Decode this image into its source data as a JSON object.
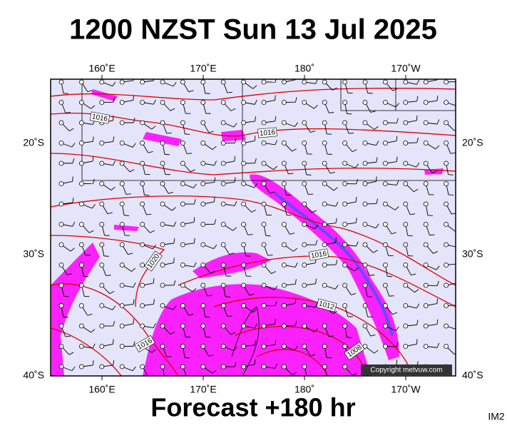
{
  "title": "1200 NZST Sun 13 Jul 2025",
  "footer": "Forecast +180 hr",
  "corner_label": "IM2",
  "copyright": "Copyright metvuw.com",
  "map": {
    "lon_labels": [
      "160˚E",
      "170˚E",
      "180˚",
      "170˚W"
    ],
    "lat_labels": [
      "20˚S",
      "30˚S",
      "40˚S"
    ],
    "isobar_labels": [
      "1016",
      "1016",
      "1020",
      "1016",
      "1012",
      "1016",
      "1008"
    ]
  }
}
